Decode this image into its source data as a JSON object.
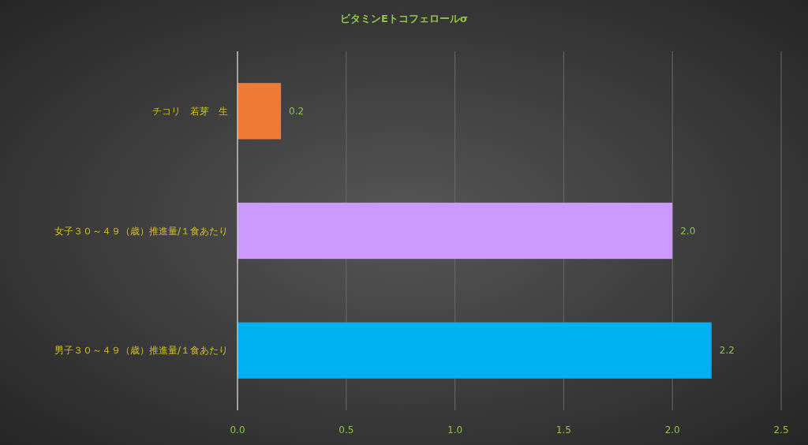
{
  "chart_data": {
    "type": "bar",
    "orientation": "horizontal",
    "title": "ビタミンEトコフェロールσ",
    "categories": [
      "チコリ　若芽　生",
      "女子３０～４９（歳）推進量/１食あたり",
      "男子３０～４９（歳）推進量/１食あたり"
    ],
    "values": [
      0.2,
      2.0,
      2.18
    ],
    "value_labels": [
      "0.2",
      "2.0",
      "2.2"
    ],
    "colors": [
      "#ee7a34",
      "#cc99ff",
      "#00b0f0"
    ],
    "xlim": [
      0,
      2.5
    ],
    "xticks": [
      {
        "value": 0,
        "label": "0.0"
      },
      {
        "value": 0.5,
        "label": "0.5"
      },
      {
        "value": 1,
        "label": "1.0"
      },
      {
        "value": 1.5,
        "label": "1.5"
      },
      {
        "value": 2,
        "label": "2.0"
      },
      {
        "value": 2.5,
        "label": "2.5"
      }
    ],
    "grid": "x"
  }
}
